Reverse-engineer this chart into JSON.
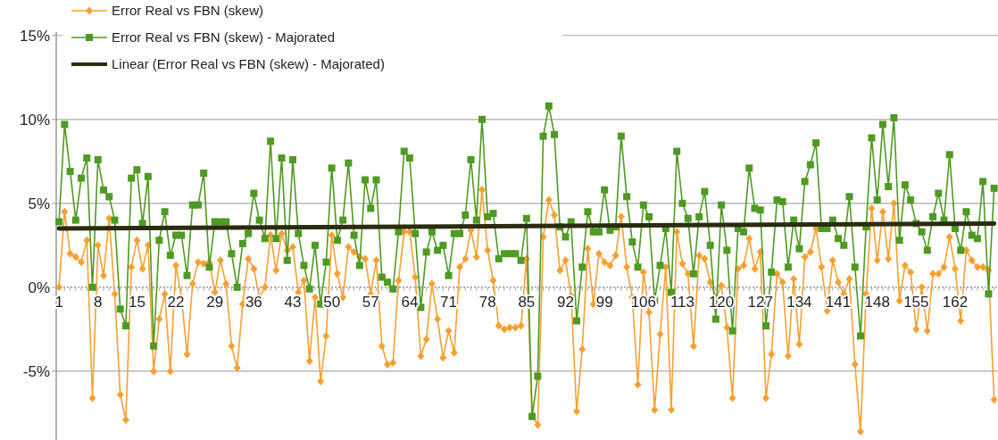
{
  "chart_data": {
    "type": "line",
    "x": [
      1,
      2,
      3,
      4,
      5,
      6,
      7,
      8,
      9,
      10,
      11,
      12,
      13,
      14,
      15,
      16,
      17,
      18,
      19,
      20,
      21,
      22,
      23,
      24,
      25,
      26,
      27,
      28,
      29,
      30,
      31,
      32,
      33,
      34,
      35,
      36,
      37,
      38,
      39,
      40,
      41,
      42,
      43,
      44,
      45,
      46,
      47,
      48,
      49,
      50,
      51,
      52,
      53,
      54,
      55,
      56,
      57,
      58,
      59,
      60,
      61,
      62,
      63,
      64,
      65,
      66,
      67,
      68,
      69,
      70,
      71,
      72,
      73,
      74,
      75,
      76,
      77,
      78,
      79,
      80,
      81,
      82,
      83,
      84,
      85,
      86,
      87,
      88,
      89,
      90,
      91,
      92,
      93,
      94,
      95,
      96,
      97,
      98,
      99,
      100,
      101,
      102,
      103,
      104,
      105,
      106,
      107,
      108,
      109,
      110,
      111,
      112,
      113,
      114,
      115,
      116,
      117,
      118,
      119,
      120,
      121,
      122,
      123,
      124,
      125,
      126,
      127,
      128,
      129,
      130,
      131,
      132,
      133,
      134,
      135,
      136,
      137,
      138,
      139,
      140,
      141,
      142,
      143,
      144,
      145,
      146,
      147,
      148,
      149,
      150,
      151,
      152,
      153,
      154,
      155,
      156,
      157,
      158,
      159,
      160,
      161,
      162,
      163,
      164,
      165,
      166,
      167,
      168,
      169
    ],
    "xlim": [
      0.5,
      169.7
    ],
    "xticks": [
      1,
      8,
      15,
      22,
      29,
      36,
      43,
      50,
      57,
      64,
      71,
      78,
      85,
      92,
      99,
      106,
      113,
      120,
      127,
      134,
      141,
      148,
      155,
      162
    ],
    "ylim": [
      -9.1,
      15.2
    ],
    "yticks": [
      {
        "value": -5,
        "label": "-5%"
      },
      {
        "value": 0,
        "label": "0%"
      },
      {
        "value": 5,
        "label": "5%"
      },
      {
        "value": 10,
        "label": "10%"
      },
      {
        "value": 15,
        "label": "15%"
      }
    ],
    "grid": "y",
    "legend": "top left",
    "ref_lines": [
      {
        "axis": "y",
        "value": 0,
        "line_style": "dotted",
        "color": "#999999"
      }
    ],
    "series": [
      {
        "name": "Error Real vs FBN (skew)",
        "color": "#f7a031",
        "marker": "diamond",
        "values": [
          0,
          4.5,
          2.0,
          1.8,
          1.5,
          2.8,
          -6.6,
          2.5,
          0.7,
          4.1,
          -0.4,
          -6.4,
          -7.9,
          1.2,
          2.8,
          1.1,
          2.5,
          -5.0,
          -1.9,
          -0.4,
          -5.0,
          1.3,
          -0.6,
          -4.0,
          0.2,
          1.5,
          1.4,
          1.5,
          -0.3,
          1.6,
          0.2,
          -3.5,
          -4.8,
          -1.0,
          1.7,
          1.1,
          -0.6,
          0.0,
          3.1,
          1.0,
          3.2,
          2.2,
          2.4,
          -0.3,
          0.4,
          -4.4,
          -0.6,
          -5.6,
          -2.9,
          3.1,
          0.8,
          -0.6,
          2.4,
          2.1,
          1.8,
          1.7,
          -0.4,
          1.6,
          -3.5,
          -4.6,
          -4.5,
          0.4,
          3.3,
          3.3,
          0.6,
          -4.1,
          -3.1,
          0.2,
          -1.9,
          -4.2,
          -2.6,
          -3.9,
          1.2,
          1.7,
          3.4,
          1.8,
          5.8,
          2.2,
          0.4,
          -2.3,
          -2.5,
          -2.4,
          -2.4,
          -2.3,
          1.7,
          -7.6,
          -8.2,
          3.0,
          5.2,
          4.3,
          1.0,
          1.6,
          -0.5,
          -7.4,
          -3.7,
          2.3,
          -1.0,
          2.0,
          1.5,
          1.3,
          1.9,
          4.2,
          1.2,
          -0.6,
          -5.8,
          0.9,
          -1.5,
          -7.3,
          -2.8,
          1.2,
          -7.3,
          3.3,
          1.4,
          0.8,
          -3.5,
          1.9,
          1.7,
          0.3,
          -0.6,
          0.1,
          -2.4,
          -6.6,
          1.1,
          1.3,
          2.9,
          1.1,
          2.1,
          -6.6,
          -4.0,
          0.8,
          0.3,
          -4.1,
          0.5,
          -3.4,
          1.8,
          2.1,
          3.5,
          1.2,
          -1.4,
          1.6,
          0.3,
          -0.4,
          0.5,
          -4.6,
          -8.6,
          -0.4,
          4.7,
          1.6,
          4.5,
          1.7,
          5.0,
          -0.8,
          1.3,
          0.9,
          -2.5,
          0,
          -2.6,
          0.8,
          0.8,
          1.2,
          3.0,
          1.1,
          -2.0,
          2.2,
          1.6,
          1.2,
          1.2,
          1.0,
          -6.7
        ]
      },
      {
        "name": "Error Real vs FBN (skew) - Majorated",
        "color": "#4e9a22",
        "marker": "square",
        "values": [
          3.9,
          9.7,
          6.9,
          4.0,
          6.5,
          7.7,
          0,
          7.6,
          5.8,
          5.4,
          4.0,
          -1.3,
          -2.3,
          6.5,
          7.0,
          3.8,
          6.6,
          -3.5,
          2.8,
          4.5,
          1.9,
          3.1,
          3.1,
          0.7,
          4.9,
          4.9,
          6.8,
          1.2,
          3.9,
          3.9,
          3.9,
          2.0,
          0,
          2.6,
          3.2,
          5.6,
          4.0,
          2.9,
          8.7,
          2.9,
          7.7,
          1.6,
          7.6,
          3.2,
          1.3,
          -0.1,
          2.5,
          -1.0,
          1.5,
          7.1,
          2.8,
          4.0,
          7.4,
          3.1,
          1.3,
          6.4,
          4.7,
          6.4,
          0.6,
          0.3,
          -0.1,
          3.3,
          8.1,
          7.7,
          3.2,
          -1.2,
          2.1,
          3.3,
          2.2,
          2.5,
          0.7,
          3.2,
          3.2,
          4.3,
          7.6,
          4.0,
          10.0,
          4.2,
          4.4,
          1.7,
          2.0,
          2.0,
          2.0,
          1.6,
          4.1,
          -7.7,
          -5.3,
          9.0,
          10.8,
          9.1,
          3.6,
          3.0,
          3.9,
          -2.0,
          1.2,
          4.5,
          3.3,
          3.3,
          5.8,
          3.4,
          3.6,
          9.0,
          5.4,
          2.7,
          1.2,
          4.9,
          4.2,
          -0.8,
          1.3,
          3.5,
          -0.3,
          8.1,
          5.0,
          4.1,
          0.8,
          4.2,
          5.7,
          2.5,
          -1.9,
          4.9,
          2.2,
          -2.6,
          3.5,
          3.3,
          7.1,
          4.7,
          4.6,
          -2.3,
          0.9,
          5.2,
          5.1,
          1.2,
          4.0,
          2.3,
          6.3,
          7.3,
          8.6,
          3.5,
          3.5,
          4.0,
          2.9,
          2.5,
          5.4,
          1.2,
          -2.9,
          3.6,
          8.9,
          5.2,
          9.7,
          6.0,
          10.1,
          2.8,
          6.1,
          5.2,
          3.8,
          3.3,
          2.2,
          4.2,
          5.6,
          4.0,
          7.9,
          3.5,
          2.2,
          4.5,
          3.1,
          2.9,
          6.3,
          -0.4,
          5.9
        ]
      },
      {
        "name": "Linear (Error Real vs FBN (skew) - Majorated)",
        "type": "line",
        "color": "#2b2b0e",
        "marker": "none",
        "x": [
          1,
          169
        ],
        "values": [
          3.5,
          3.8
        ]
      }
    ]
  }
}
